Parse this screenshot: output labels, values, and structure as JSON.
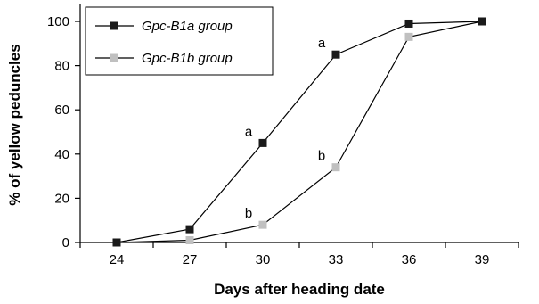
{
  "chart_data": {
    "type": "line",
    "xlabel": "Days after heading date",
    "ylabel": "% of yellow peduncles",
    "x": [
      24,
      27,
      30,
      33,
      36,
      39
    ],
    "x_tick_labels": [
      "24",
      "27",
      "30",
      "33",
      "36",
      "39"
    ],
    "y_tick_labels": [
      "0",
      "20",
      "40",
      "60",
      "80",
      "100"
    ],
    "xlim": [
      22.5,
      40.5
    ],
    "ylim": [
      0,
      100
    ],
    "grid": false,
    "legend_position": "top-left",
    "series": [
      {
        "name": "Gpc-B1a group",
        "values": [
          0,
          6,
          45,
          85,
          99,
          100
        ],
        "color": "#1a1a1a",
        "marker": "square"
      },
      {
        "name": "Gpc-B1b group",
        "values": [
          0,
          1,
          8,
          34,
          93,
          100
        ],
        "color": "#c0c0c0",
        "marker": "square"
      }
    ],
    "annotations": [
      {
        "text": "a",
        "x": 30,
        "series": 0
      },
      {
        "text": "a",
        "x": 33,
        "series": 0
      },
      {
        "text": "b",
        "x": 30,
        "series": 1
      },
      {
        "text": "b",
        "x": 33,
        "series": 1
      }
    ]
  }
}
